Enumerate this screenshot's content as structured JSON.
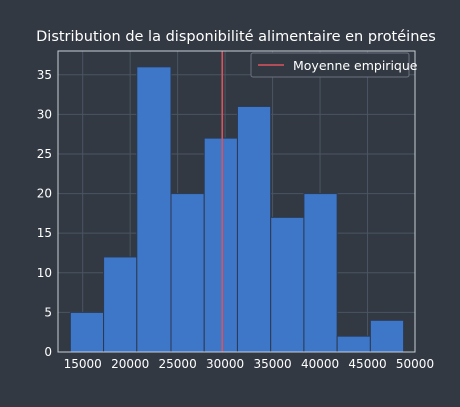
{
  "colors": {
    "background": "#333943",
    "plot_background": "#333943",
    "grid": "#4a5563",
    "frame": "#c9ced6",
    "text": "#ffffff",
    "bar_fill": "#3e76c8",
    "bar_edge": "#2b3a52",
    "mean_line": "#d9545c",
    "legend_bg": "#333943",
    "legend_edge": "#6b7482"
  },
  "chart_data": {
    "type": "bar",
    "title": "Distribution de la disponibilité alimentaire en protéines",
    "xlabel": "",
    "ylabel": "",
    "xlim": [
      12400,
      50000
    ],
    "ylim": [
      0,
      38
    ],
    "x_ticks": [
      15000,
      20000,
      25000,
      30000,
      35000,
      40000,
      45000,
      50000
    ],
    "x_tick_labels": [
      "15000",
      "20000",
      "25000",
      "30000",
      "35000",
      "40000",
      "45000",
      "50000"
    ],
    "y_ticks": [
      0,
      5,
      10,
      15,
      20,
      25,
      30,
      35
    ],
    "y_tick_labels": [
      "0",
      "5",
      "10",
      "15",
      "20",
      "25",
      "30",
      "35"
    ],
    "bin_edges": [
      13700,
      17200,
      20700,
      24300,
      27800,
      31300,
      34800,
      38300,
      41800,
      45300,
      48800
    ],
    "counts": [
      5,
      12,
      36,
      20,
      27,
      31,
      17,
      20,
      2,
      4
    ],
    "mean_line_x": 29700,
    "legend": {
      "entries": [
        "Moyenne empirique"
      ],
      "placement": "top-right"
    },
    "grid": true
  }
}
